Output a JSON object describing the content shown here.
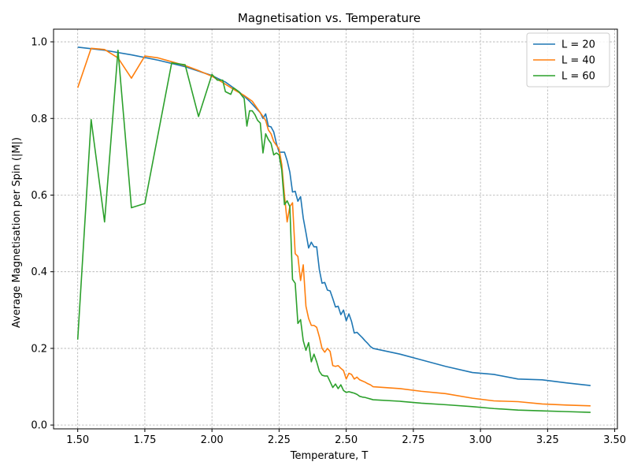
{
  "chart_data": {
    "type": "line",
    "title": "Magnetisation vs. Temperature",
    "xlabel": "Temperature, T",
    "ylabel": "Average Magnetisation per Spin (|M|)",
    "xlim": [
      1.41,
      3.51
    ],
    "ylim": [
      -0.01,
      1.033
    ],
    "xticks": [
      1.5,
      1.75,
      2.0,
      2.25,
      2.5,
      2.75,
      3.0,
      3.25,
      3.5
    ],
    "xtick_labels": [
      "1.50",
      "1.75",
      "2.00",
      "2.25",
      "2.50",
      "2.75",
      "3.00",
      "3.25",
      "3.50"
    ],
    "yticks": [
      0.0,
      0.2,
      0.4,
      0.6,
      0.8,
      1.0
    ],
    "ytick_labels": [
      "0.0",
      "0.2",
      "0.4",
      "0.6",
      "0.8",
      "1.0"
    ],
    "grid": true,
    "legend_position": "top-right",
    "series": [
      {
        "name": "L = 20",
        "color": "#1f77b4",
        "x": [
          1.5,
          1.6,
          1.7,
          1.8,
          1.9,
          2.0,
          2.02,
          2.05,
          2.08,
          2.1,
          2.12,
          2.14,
          2.16,
          2.18,
          2.19,
          2.2,
          2.21,
          2.22,
          2.23,
          2.24,
          2.25,
          2.26,
          2.27,
          2.28,
          2.29,
          2.3,
          2.31,
          2.32,
          2.33,
          2.34,
          2.35,
          2.36,
          2.37,
          2.38,
          2.39,
          2.4,
          2.41,
          2.42,
          2.43,
          2.44,
          2.45,
          2.46,
          2.47,
          2.48,
          2.49,
          2.5,
          2.51,
          2.52,
          2.53,
          2.54,
          2.55,
          2.56,
          2.57,
          2.58,
          2.59,
          2.6,
          2.7,
          2.78,
          2.87,
          2.97,
          3.05,
          3.14,
          3.23,
          3.32,
          3.41
        ],
        "y": [
          0.986,
          0.978,
          0.966,
          0.952,
          0.935,
          0.912,
          0.905,
          0.895,
          0.88,
          0.87,
          0.858,
          0.845,
          0.83,
          0.815,
          0.8,
          0.812,
          0.78,
          0.778,
          0.765,
          0.735,
          0.712,
          0.712,
          0.712,
          0.69,
          0.66,
          0.608,
          0.61,
          0.584,
          0.596,
          0.54,
          0.502,
          0.462,
          0.477,
          0.465,
          0.465,
          0.405,
          0.37,
          0.372,
          0.352,
          0.35,
          0.33,
          0.308,
          0.31,
          0.288,
          0.3,
          0.272,
          0.29,
          0.27,
          0.24,
          0.242,
          0.235,
          0.228,
          0.22,
          0.213,
          0.205,
          0.2,
          0.185,
          0.17,
          0.153,
          0.137,
          0.132,
          0.12,
          0.118,
          0.11,
          0.103
        ]
      },
      {
        "name": "L = 40",
        "color": "#ff7f0e",
        "x": [
          1.5,
          1.55,
          1.6,
          1.65,
          1.7,
          1.75,
          1.8,
          1.85,
          1.9,
          1.95,
          2.0,
          2.03,
          2.06,
          2.09,
          2.12,
          2.15,
          2.18,
          2.2,
          2.21,
          2.22,
          2.23,
          2.24,
          2.25,
          2.26,
          2.27,
          2.28,
          2.29,
          2.3,
          2.31,
          2.32,
          2.33,
          2.34,
          2.35,
          2.36,
          2.37,
          2.38,
          2.39,
          2.4,
          2.41,
          2.42,
          2.43,
          2.44,
          2.45,
          2.46,
          2.47,
          2.48,
          2.49,
          2.5,
          2.51,
          2.52,
          2.53,
          2.54,
          2.55,
          2.56,
          2.57,
          2.58,
          2.59,
          2.6,
          2.7,
          2.78,
          2.87,
          2.97,
          3.05,
          3.14,
          3.23,
          3.32,
          3.41
        ],
        "y": [
          0.88,
          0.983,
          0.98,
          0.958,
          0.905,
          0.963,
          0.958,
          0.948,
          0.938,
          0.925,
          0.91,
          0.898,
          0.885,
          0.872,
          0.86,
          0.845,
          0.815,
          0.795,
          0.77,
          0.76,
          0.74,
          0.73,
          0.72,
          0.68,
          0.6,
          0.53,
          0.57,
          0.58,
          0.447,
          0.44,
          0.377,
          0.418,
          0.31,
          0.278,
          0.26,
          0.26,
          0.255,
          0.23,
          0.2,
          0.19,
          0.2,
          0.192,
          0.155,
          0.153,
          0.155,
          0.148,
          0.142,
          0.12,
          0.135,
          0.132,
          0.12,
          0.125,
          0.118,
          0.115,
          0.112,
          0.108,
          0.105,
          0.1,
          0.095,
          0.088,
          0.082,
          0.07,
          0.063,
          0.061,
          0.055,
          0.052,
          0.05
        ]
      },
      {
        "name": "L = 60",
        "color": "#2ca02c",
        "x": [
          1.5,
          1.55,
          1.6,
          1.65,
          1.7,
          1.75,
          1.85,
          1.9,
          1.95,
          2.0,
          2.02,
          2.04,
          2.05,
          2.07,
          2.08,
          2.1,
          2.12,
          2.13,
          2.14,
          2.15,
          2.16,
          2.17,
          2.18,
          2.19,
          2.2,
          2.21,
          2.22,
          2.23,
          2.24,
          2.25,
          2.26,
          2.27,
          2.28,
          2.29,
          2.3,
          2.31,
          2.32,
          2.33,
          2.34,
          2.35,
          2.36,
          2.37,
          2.38,
          2.39,
          2.4,
          2.41,
          2.42,
          2.43,
          2.44,
          2.45,
          2.46,
          2.47,
          2.48,
          2.49,
          2.5,
          2.51,
          2.52,
          2.53,
          2.54,
          2.55,
          2.56,
          2.57,
          2.58,
          2.59,
          2.6,
          2.7,
          2.78,
          2.87,
          2.97,
          3.05,
          3.14,
          3.23,
          3.32,
          3.41
        ],
        "y": [
          0.223,
          0.797,
          0.53,
          0.978,
          0.567,
          0.578,
          0.945,
          0.94,
          0.805,
          0.915,
          0.9,
          0.9,
          0.87,
          0.863,
          0.88,
          0.87,
          0.852,
          0.78,
          0.82,
          0.82,
          0.81,
          0.795,
          0.788,
          0.71,
          0.76,
          0.745,
          0.735,
          0.705,
          0.71,
          0.705,
          0.665,
          0.575,
          0.585,
          0.57,
          0.38,
          0.37,
          0.265,
          0.275,
          0.22,
          0.195,
          0.215,
          0.165,
          0.185,
          0.165,
          0.14,
          0.13,
          0.128,
          0.128,
          0.113,
          0.098,
          0.107,
          0.095,
          0.105,
          0.09,
          0.085,
          0.087,
          0.085,
          0.083,
          0.08,
          0.075,
          0.073,
          0.072,
          0.07,
          0.068,
          0.066,
          0.062,
          0.057,
          0.053,
          0.048,
          0.043,
          0.039,
          0.037,
          0.035,
          0.033
        ]
      }
    ]
  }
}
